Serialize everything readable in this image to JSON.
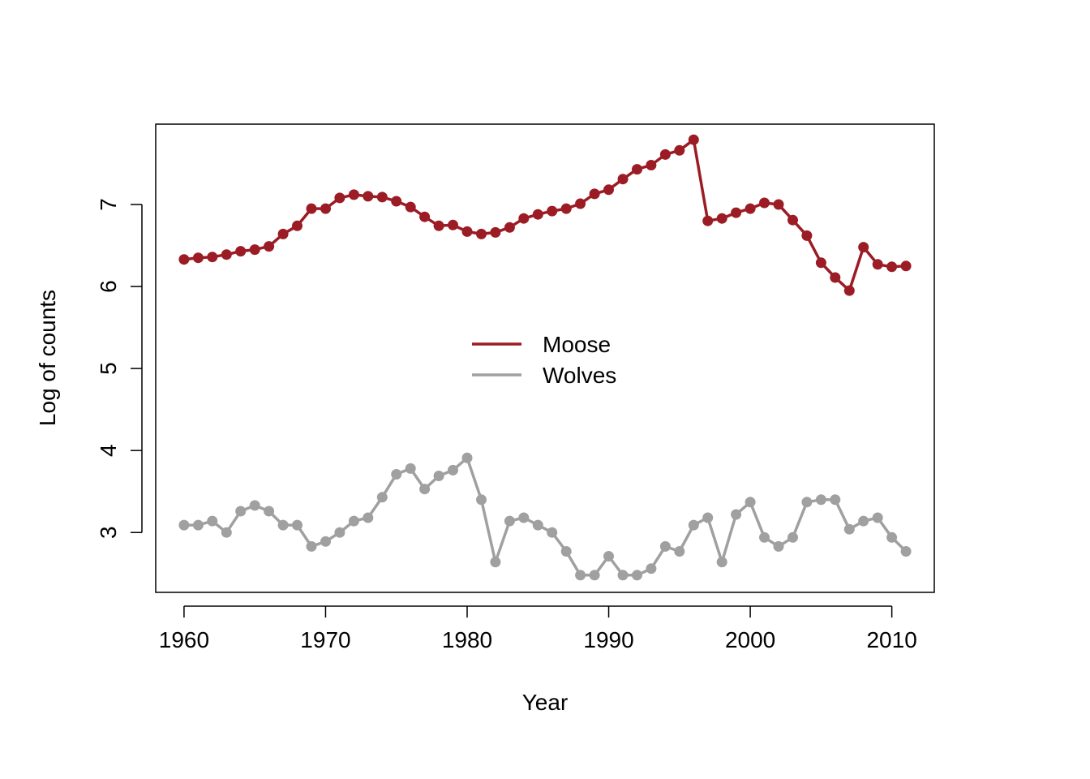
{
  "chart_data": {
    "type": "line",
    "title": "",
    "xlabel": "Year",
    "ylabel": "Log of counts",
    "xlim": [
      1958,
      2013
    ],
    "ylim": [
      2.27,
      7.98
    ],
    "xticks": [
      1960,
      1970,
      1980,
      1990,
      2000,
      2010
    ],
    "yticks": [
      3,
      4,
      5,
      6,
      7
    ],
    "grid": false,
    "legend_placement": "center",
    "x": [
      1960,
      1961,
      1962,
      1963,
      1964,
      1965,
      1966,
      1967,
      1968,
      1969,
      1970,
      1971,
      1972,
      1973,
      1974,
      1975,
      1976,
      1977,
      1978,
      1979,
      1980,
      1981,
      1982,
      1983,
      1984,
      1985,
      1986,
      1987,
      1988,
      1989,
      1990,
      1991,
      1992,
      1993,
      1994,
      1995,
      1996,
      1997,
      1998,
      1999,
      2000,
      2001,
      2002,
      2003,
      2004,
      2005,
      2006,
      2007,
      2008,
      2009,
      2010,
      2011
    ],
    "series": [
      {
        "name": "Moose",
        "color": "#9b1c24",
        "values": [
          6.33,
          6.35,
          6.36,
          6.39,
          6.43,
          6.45,
          6.49,
          6.64,
          6.74,
          6.95,
          6.95,
          7.08,
          7.12,
          7.1,
          7.09,
          7.04,
          6.97,
          6.85,
          6.74,
          6.75,
          6.67,
          6.64,
          6.66,
          6.72,
          6.83,
          6.88,
          6.92,
          6.95,
          7.01,
          7.13,
          7.18,
          7.31,
          7.43,
          7.48,
          7.61,
          7.66,
          7.79,
          6.8,
          6.83,
          6.9,
          6.95,
          7.02,
          7.0,
          6.81,
          6.62,
          6.29,
          6.11,
          5.95,
          6.48,
          6.27,
          6.24,
          6.25
        ]
      },
      {
        "name": "Wolves",
        "color": "#a0a0a0",
        "values": [
          3.09,
          3.09,
          3.14,
          3.0,
          3.26,
          3.33,
          3.26,
          3.09,
          3.09,
          2.83,
          2.89,
          3.0,
          3.14,
          3.18,
          3.43,
          3.71,
          3.78,
          3.53,
          3.69,
          3.76,
          3.91,
          3.4,
          2.64,
          3.14,
          3.18,
          3.09,
          3.0,
          2.77,
          2.48,
          2.48,
          2.71,
          2.48,
          2.48,
          2.56,
          2.83,
          2.77,
          3.09,
          3.18,
          2.64,
          3.22,
          3.37,
          2.94,
          2.83,
          2.94,
          3.37,
          3.4,
          3.4,
          3.04,
          3.14,
          3.18,
          2.94,
          2.77
        ]
      }
    ]
  }
}
